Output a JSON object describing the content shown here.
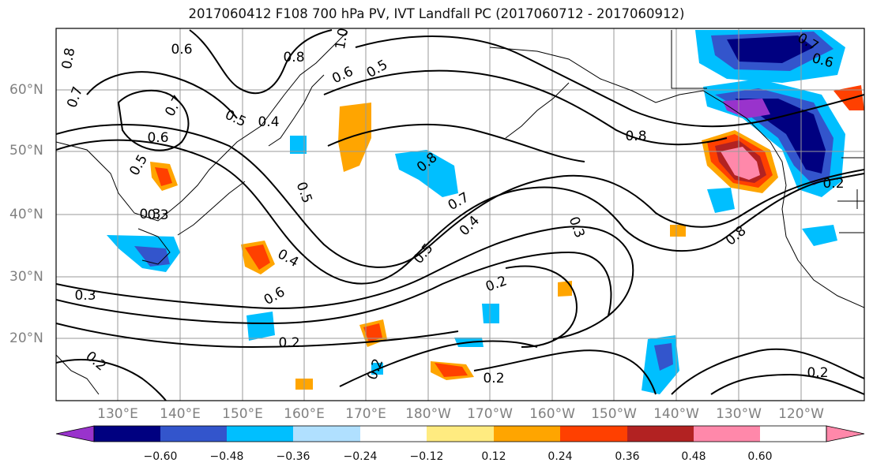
{
  "title": "2017060412 F108 700 hPa PV, IVT Landfall PC (2017060712 - 2017060912)",
  "lat_labels": [
    "60°N",
    "50°N",
    "40°N",
    "30°N",
    "20°N"
  ],
  "lon_labels": [
    "130°E",
    "140°E",
    "150°E",
    "160°E",
    "170°E",
    "180°W",
    "170°W",
    "160°W",
    "150°W",
    "140°W",
    "130°W",
    "120°W"
  ],
  "colorbar": {
    "ticks": [
      "−0.60",
      "−0.48",
      "−0.36",
      "−0.24",
      "−0.12",
      "0.12",
      "0.24",
      "0.36",
      "0.48",
      "0.60"
    ],
    "colors": [
      "#9933cc",
      "#000080",
      "#3355cc",
      "#00bfff",
      "#b0e0ff",
      "#ffffff",
      "#ffeb80",
      "#ffa500",
      "#ff4000",
      "#b22222",
      "#ff88aa"
    ]
  },
  "contour_labels": [
    "0.8",
    "0.6",
    "0.8",
    "0.6",
    "0.5",
    "0.7",
    "1.0",
    "0.7",
    "0.5",
    "0.6",
    "0.4",
    "0.8",
    "0.3",
    "0.5",
    "0.5",
    "0.3",
    "0.4",
    "0.6",
    "0.2",
    "0.5",
    "0.2",
    "0.7",
    "0.4",
    "0.2",
    "0.8",
    "0.3",
    "0.8",
    "0.2",
    "0.7",
    "0.6",
    "0.2",
    "0.2",
    "0.2",
    "0.3"
  ],
  "colors": {
    "grid": "#9a9a9a",
    "contour": "#000000",
    "coast": "#000000"
  }
}
